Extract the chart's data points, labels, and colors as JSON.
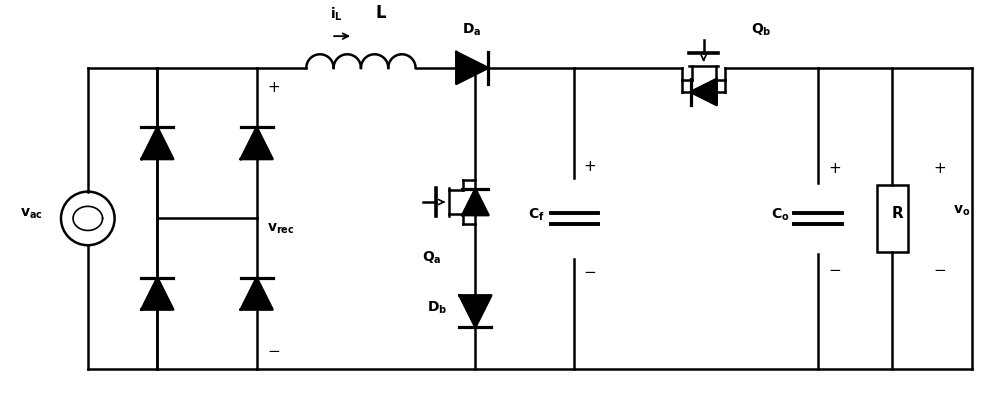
{
  "bg_color": "#ffffff",
  "line_color": "#000000",
  "lw": 1.8,
  "fig_width": 10.0,
  "fig_height": 4.12,
  "dpi": 100,
  "xlim": [
    0,
    10
  ],
  "ylim": [
    0,
    4.12
  ]
}
